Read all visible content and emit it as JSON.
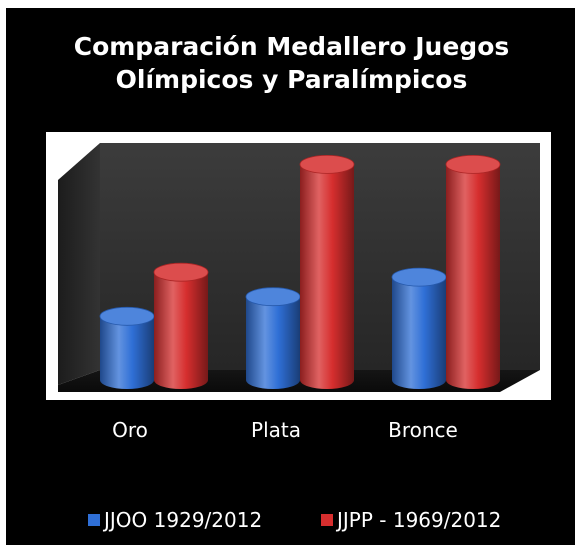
{
  "chart_data": {
    "type": "bar",
    "title": "Comparación Medallero Juegos Olímpicos y Paralímpicos",
    "title_lines": [
      "Comparación Medallero Juegos",
      "Olímpicos y Paralímpicos"
    ],
    "categories": [
      "Oro",
      "Plata",
      "Bronce"
    ],
    "series": [
      {
        "name": "JJOO 1929/2012",
        "color": "#2f6fd6",
        "values": [
          13,
          17,
          21
        ]
      },
      {
        "name": "JJPP - 1969/2012",
        "color": "#d62e2e",
        "values": [
          22,
          44,
          44
        ]
      }
    ],
    "ylim": [
      0,
      46
    ],
    "grid": false,
    "legend_position": "bottom",
    "style": "3d-cylinder"
  }
}
